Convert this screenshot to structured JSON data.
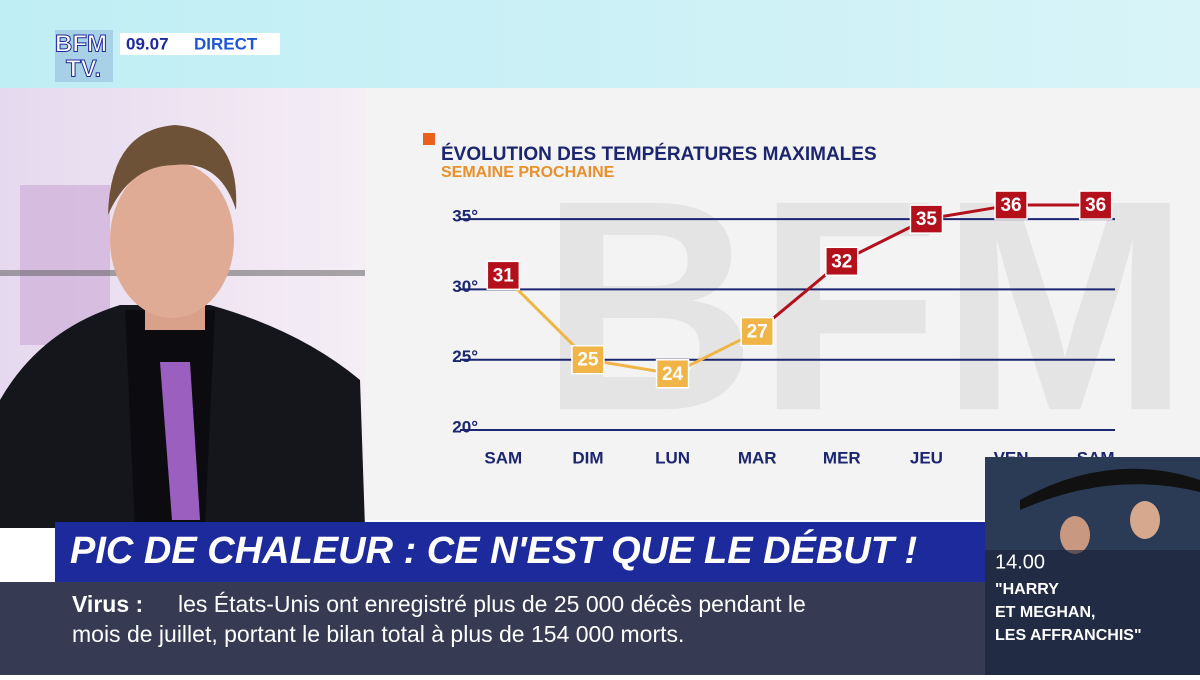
{
  "logo": {
    "line1": "BFM",
    "line2": "TV."
  },
  "time": "09.07",
  "live": "DIRECT",
  "headline": "PIC DE CHALEUR : CE N'EST QUE LE DÉBUT !",
  "ticker": {
    "label": "Virus :",
    "lines": [
      "les États-Unis ont enregistré plus de 25 000 décès pendant le",
      "mois de juillet, portant le bilan total à plus de 154 000 morts."
    ]
  },
  "promo": {
    "time": "14.00",
    "lines": [
      "\"HARRY",
      "ET MEGHAN,",
      "LES AFFRANCHIS\""
    ]
  },
  "chart_data": {
    "type": "line",
    "title": "ÉVOLUTION DES TEMPÉRATURES MAXIMALES",
    "subtitle": "SEMAINE PROCHAINE",
    "categories": [
      "SAM",
      "DIM",
      "LUN",
      "MAR",
      "MER",
      "JEU",
      "VEN",
      "SAM"
    ],
    "series": [
      {
        "values": [
          31,
          25,
          24,
          27,
          32,
          35,
          36,
          36
        ],
        "colors": [
          "#b3101c",
          "#f0b447",
          "#f0b447",
          "#f0b447",
          "#b3101c",
          "#b3101c",
          "#b3101c",
          "#b3101c"
        ]
      }
    ],
    "ylim": [
      20,
      37
    ],
    "yticks": [
      {
        "value": 20,
        "label": "20°"
      },
      {
        "value": 25,
        "label": "25°"
      },
      {
        "value": 30,
        "label": "30°"
      },
      {
        "value": 35,
        "label": "35°"
      }
    ],
    "grid": true
  }
}
